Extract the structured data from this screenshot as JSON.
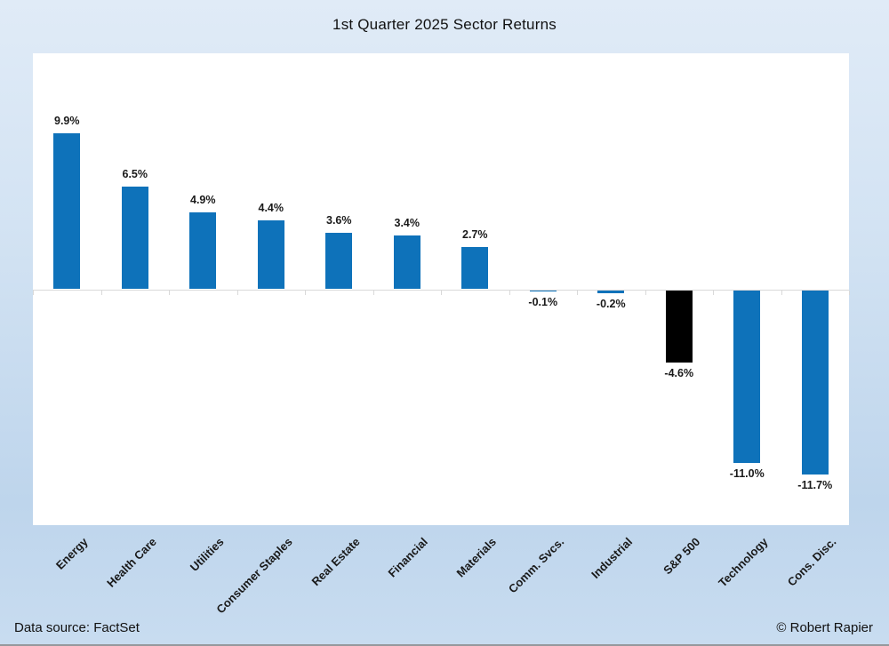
{
  "title": "1st Quarter 2025 Sector Returns",
  "footer": {
    "source": "Data source: FactSet",
    "credit": "© Robert Rapier"
  },
  "chart_data": {
    "type": "bar",
    "title": "1st Quarter 2025 Sector Returns",
    "categories": [
      "Energy",
      "Health Care",
      "Utilities",
      "Consumer Staples",
      "Real Estate",
      "Financial",
      "Materials",
      "Comm. Svcs.",
      "Industrial",
      "S&P 500",
      "Technology",
      "Cons. Disc."
    ],
    "values": [
      9.9,
      6.5,
      4.9,
      4.4,
      3.6,
      3.4,
      2.7,
      -0.1,
      -0.2,
      -4.6,
      -11.0,
      -11.7
    ],
    "labels": [
      "9.9%",
      "6.5%",
      "4.9%",
      "4.4%",
      "3.6%",
      "3.4%",
      "2.7%",
      "-0.1%",
      "-0.2%",
      "-4.6%",
      "-11.0%",
      "-11.7%"
    ],
    "xlabel": "",
    "ylabel": "",
    "ylim": [
      -15,
      15
    ],
    "baseline": 0,
    "gridlines": false,
    "legend": "none",
    "data_labels": true,
    "bar_color": "#0e72ba",
    "highlight_index": 9,
    "highlight_color": "#000000",
    "axis_color": "#d9d9d9",
    "label_color": "#1a1a1a"
  }
}
